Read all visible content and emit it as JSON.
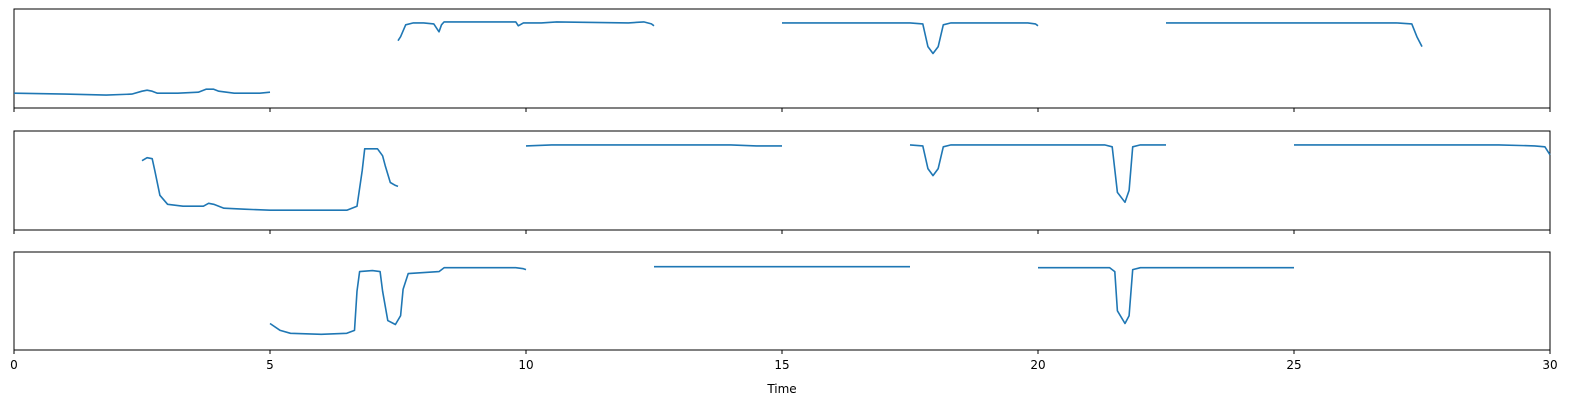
{
  "chart_data": {
    "type": "line",
    "layout": "3 stacked panels with shared x axis",
    "xlabel": "Time",
    "xlim": [
      0,
      30
    ],
    "ylim": [
      0,
      1
    ],
    "x_ticks": [
      0,
      5,
      10,
      15,
      20,
      25,
      30
    ],
    "x_tick_labels": [
      "0",
      "5",
      "10",
      "15",
      "20",
      "25",
      "30"
    ],
    "y_ticks_visible": false,
    "grid": false,
    "legend": "none",
    "line_color": "#1f77b4",
    "panels": [
      {
        "segments": [
          [
            [
              0,
              0.15
            ],
            [
              1,
              0.14
            ],
            [
              1.8,
              0.13
            ],
            [
              2.3,
              0.14
            ],
            [
              2.5,
              0.17
            ],
            [
              2.6,
              0.18
            ],
            [
              2.7,
              0.17
            ],
            [
              2.8,
              0.15
            ],
            [
              3.2,
              0.15
            ],
            [
              3.6,
              0.16
            ],
            [
              3.75,
              0.19
            ],
            [
              3.9,
              0.19
            ],
            [
              4.0,
              0.17
            ],
            [
              4.3,
              0.15
            ],
            [
              4.8,
              0.15
            ],
            [
              5.0,
              0.16
            ]
          ],
          [
            [
              7.5,
              0.68
            ],
            [
              7.55,
              0.72
            ],
            [
              7.65,
              0.84
            ],
            [
              7.8,
              0.86
            ],
            [
              8.0,
              0.86
            ],
            [
              8.2,
              0.85
            ],
            [
              8.3,
              0.77
            ],
            [
              8.35,
              0.84
            ],
            [
              8.4,
              0.87
            ],
            [
              8.7,
              0.87
            ],
            [
              9.5,
              0.87
            ],
            [
              9.8,
              0.87
            ],
            [
              9.85,
              0.83
            ],
            [
              9.95,
              0.86
            ],
            [
              10.3,
              0.86
            ],
            [
              10.6,
              0.87
            ],
            [
              12.0,
              0.86
            ],
            [
              12.3,
              0.87
            ],
            [
              12.45,
              0.85
            ],
            [
              12.5,
              0.83
            ]
          ],
          [
            [
              15,
              0.86
            ],
            [
              16.5,
              0.86
            ],
            [
              17.5,
              0.86
            ],
            [
              17.75,
              0.85
            ],
            [
              17.85,
              0.62
            ],
            [
              17.95,
              0.55
            ],
            [
              18.05,
              0.62
            ],
            [
              18.15,
              0.84
            ],
            [
              18.3,
              0.86
            ],
            [
              19.8,
              0.86
            ],
            [
              19.95,
              0.85
            ],
            [
              20.0,
              0.83
            ]
          ],
          [
            [
              22.5,
              0.86
            ],
            [
              26,
              0.86
            ],
            [
              27.0,
              0.86
            ],
            [
              27.3,
              0.85
            ],
            [
              27.4,
              0.72
            ],
            [
              27.5,
              0.62
            ]
          ]
        ]
      },
      {
        "segments": [
          [
            [
              2.5,
              0.7
            ],
            [
              2.6,
              0.73
            ],
            [
              2.7,
              0.72
            ],
            [
              2.75,
              0.6
            ],
            [
              2.85,
              0.35
            ],
            [
              3.0,
              0.26
            ],
            [
              3.3,
              0.24
            ],
            [
              3.7,
              0.24
            ],
            [
              3.8,
              0.27
            ],
            [
              3.9,
              0.26
            ],
            [
              4.1,
              0.22
            ],
            [
              4.5,
              0.21
            ],
            [
              5,
              0.2
            ],
            [
              5.5,
              0.2
            ],
            [
              6.5,
              0.2
            ],
            [
              6.7,
              0.24
            ],
            [
              6.8,
              0.6
            ],
            [
              6.85,
              0.82
            ],
            [
              7.1,
              0.82
            ],
            [
              7.2,
              0.75
            ],
            [
              7.25,
              0.65
            ],
            [
              7.35,
              0.48
            ],
            [
              7.45,
              0.45
            ],
            [
              7.5,
              0.44
            ]
          ],
          [
            [
              10,
              0.85
            ],
            [
              10.5,
              0.86
            ],
            [
              11.5,
              0.86
            ],
            [
              12,
              0.86
            ],
            [
              14,
              0.86
            ],
            [
              14.5,
              0.85
            ],
            [
              15,
              0.85
            ]
          ],
          [
            [
              17.5,
              0.86
            ],
            [
              17.75,
              0.85
            ],
            [
              17.85,
              0.62
            ],
            [
              17.95,
              0.55
            ],
            [
              18.05,
              0.62
            ],
            [
              18.15,
              0.84
            ],
            [
              18.3,
              0.86
            ],
            [
              21.3,
              0.86
            ],
            [
              21.45,
              0.84
            ],
            [
              21.55,
              0.38
            ],
            [
              21.7,
              0.28
            ],
            [
              21.78,
              0.4
            ],
            [
              21.85,
              0.84
            ],
            [
              22.0,
              0.86
            ],
            [
              22.5,
              0.86
            ]
          ],
          [
            [
              25,
              0.86
            ],
            [
              27,
              0.86
            ],
            [
              28,
              0.86
            ],
            [
              29,
              0.86
            ],
            [
              29.7,
              0.85
            ],
            [
              29.9,
              0.84
            ],
            [
              30,
              0.76
            ]
          ]
        ]
      },
      {
        "segments": [
          [
            [
              5,
              0.27
            ],
            [
              5.2,
              0.2
            ],
            [
              5.4,
              0.17
            ],
            [
              6,
              0.16
            ],
            [
              6.5,
              0.17
            ],
            [
              6.65,
              0.2
            ],
            [
              6.7,
              0.6
            ],
            [
              6.75,
              0.8
            ],
            [
              7.0,
              0.81
            ],
            [
              7.15,
              0.8
            ],
            [
              7.2,
              0.6
            ],
            [
              7.3,
              0.3
            ],
            [
              7.45,
              0.26
            ],
            [
              7.55,
              0.35
            ],
            [
              7.6,
              0.62
            ],
            [
              7.7,
              0.78
            ],
            [
              8.0,
              0.79
            ],
            [
              8.3,
              0.8
            ],
            [
              8.4,
              0.84
            ],
            [
              8.6,
              0.84
            ],
            [
              9.8,
              0.84
            ],
            [
              9.95,
              0.83
            ],
            [
              10.0,
              0.82
            ]
          ],
          [
            [
              12.5,
              0.85
            ],
            [
              14.4,
              0.85
            ],
            [
              15,
              0.85
            ],
            [
              17.5,
              0.85
            ]
          ],
          [
            [
              20,
              0.84
            ],
            [
              20.6,
              0.84
            ],
            [
              21.4,
              0.84
            ],
            [
              21.5,
              0.8
            ],
            [
              21.55,
              0.4
            ],
            [
              21.7,
              0.27
            ],
            [
              21.78,
              0.35
            ],
            [
              21.85,
              0.82
            ],
            [
              22.0,
              0.84
            ],
            [
              25,
              0.84
            ]
          ]
        ]
      }
    ]
  }
}
